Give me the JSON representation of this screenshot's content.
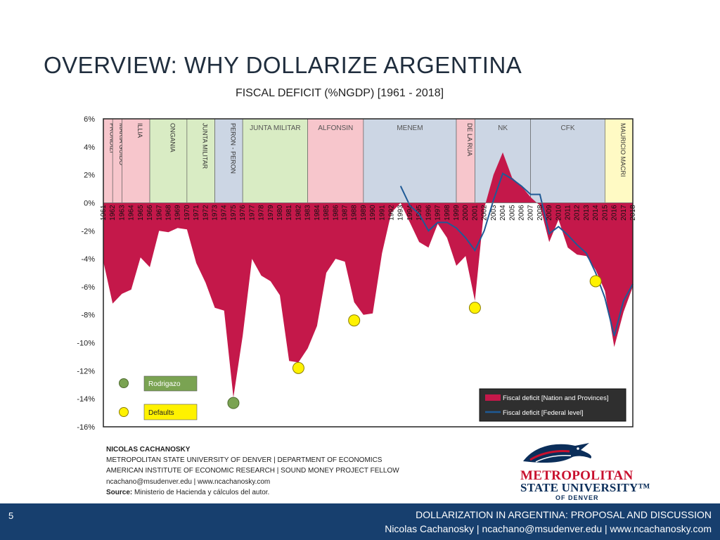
{
  "slide": {
    "title": "OVERVIEW: WHY DOLLARIZE ARGENTINA",
    "number": "5"
  },
  "footer": {
    "line1": "DOLLARIZATION IN ARGENTINA: PROPOSAL AND DISCUSSION",
    "line2": "Nicolas Cachanosky | ncachano@msudenver.edu | www.ncachanosky.com"
  },
  "author": {
    "name": "NICOLAS CACHANOSKY",
    "line1": "METROPOLITAN  STATE UNIVERSITY  OF DENVER  |  DEPARTMENT   OF ECONOMICS",
    "line2": "AMERICAN  INSTITUTE OF ECONOMIC RESEARCH  |  SOUND  MONEY PROJECT FELLOW",
    "contact": "ncachano@msudenver.edu | www.ncachanosky.com",
    "source_label": "Source:",
    "source_text": "Ministerio de Hacienda y cálculos del autor."
  },
  "logo": {
    "line1": "METROPOLITAN",
    "line2": "STATE UNIVERSITY™",
    "line3": "OF DENVER"
  },
  "chart_data": {
    "type": "area",
    "title": "FISCAL DEFICIT (%NGDP) [1961 - 2018]",
    "xlabel": "",
    "ylabel": "",
    "ylim": [
      -16,
      6
    ],
    "yticks": [
      6,
      4,
      2,
      0,
      -2,
      -4,
      -6,
      -8,
      -10,
      -12,
      -14,
      -16
    ],
    "ytick_labels": [
      "6%",
      "4%",
      "2%",
      "0%",
      "-2%",
      "-4%",
      "-6%",
      "-8%",
      "-10%",
      "-12%",
      "-14%",
      "-16%"
    ],
    "x": [
      1961,
      1962,
      1963,
      1964,
      1965,
      1966,
      1967,
      1968,
      1969,
      1970,
      1971,
      1972,
      1973,
      1974,
      1975,
      1976,
      1977,
      1978,
      1979,
      1980,
      1981,
      1982,
      1983,
      1984,
      1985,
      1986,
      1987,
      1988,
      1989,
      1990,
      1991,
      1992,
      1993,
      1994,
      1995,
      1996,
      1997,
      1998,
      1999,
      2000,
      2001,
      2002,
      2003,
      2004,
      2005,
      2006,
      2007,
      2008,
      2009,
      2010,
      2011,
      2012,
      2013,
      2014,
      2015,
      2016,
      2017,
      2018
    ],
    "series": [
      {
        "name": "Fiscal deficit [Nation and Provinces]",
        "kind": "area",
        "color": "#c4184a",
        "values": [
          -4.2,
          -7.2,
          -6.5,
          -6.2,
          -3.9,
          -4.6,
          -2.0,
          -2.1,
          -1.8,
          -1.9,
          -4.3,
          -5.7,
          -7.5,
          -7.7,
          -13.9,
          -9.5,
          -4.0,
          -5.2,
          -5.6,
          -6.6,
          -11.3,
          -11.4,
          -10.4,
          -8.8,
          -5.0,
          -4.0,
          -4.2,
          -7.1,
          -8.0,
          -7.9,
          -3.6,
          -0.7,
          0.0,
          -1.4,
          -2.8,
          -3.2,
          -1.5,
          -2.5,
          -4.5,
          -3.8,
          -7.0,
          -0.4,
          2.0,
          3.6,
          1.8,
          1.2,
          0.4,
          -0.2,
          -2.8,
          -1.2,
          -3.2,
          -3.7,
          -3.8,
          -4.8,
          -6.3,
          -10.3,
          -7.8,
          -6.0
        ]
      },
      {
        "name": "Fiscal deficit [Federal level]",
        "kind": "line",
        "color": "#1f5a96",
        "x": [
          1993,
          1994,
          1995,
          1996,
          1997,
          1998,
          1999,
          2000,
          2001,
          2002,
          2003,
          2004,
          2005,
          2006,
          2007,
          2008,
          2009,
          2010,
          2011,
          2012,
          2013,
          2014,
          2015,
          2016,
          2017,
          2018
        ],
        "values": [
          1.2,
          -0.2,
          -0.8,
          -2.0,
          -1.4,
          -1.4,
          -1.8,
          -2.5,
          -3.4,
          -2.0,
          0.2,
          2.1,
          1.7,
          1.2,
          0.6,
          0.6,
          -2.2,
          -1.7,
          -2.3,
          -3.0,
          -3.6,
          -5.0,
          -6.8,
          -9.5,
          -7.0,
          -5.8
        ]
      }
    ],
    "periods": [
      {
        "label": "FRONDIZI",
        "start": 1961,
        "end": 1962,
        "color": "#f7c6cc",
        "vertical": true
      },
      {
        "label": "MARIA GUIDO",
        "start": 1962,
        "end": 1963,
        "color": "#f7c6cc",
        "vertical": true
      },
      {
        "label": "ILLIA",
        "start": 1963,
        "end": 1966,
        "color": "#f7c6cc",
        "vertical": true
      },
      {
        "label": "ONGANIA",
        "start": 1966,
        "end": 1970,
        "color": "#d9ecc4",
        "vertical": true
      },
      {
        "label": "JUNTA MILITAR",
        "start": 1970,
        "end": 1973,
        "color": "#d9ecc4",
        "vertical": true
      },
      {
        "label": "PERON - PERON",
        "start": 1973,
        "end": 1976,
        "color": "#ccd6e4",
        "vertical": true
      },
      {
        "label": "JUNTA MILITAR",
        "start": 1976,
        "end": 1983,
        "color": "#d9ecc4",
        "vertical": false
      },
      {
        "label": "ALFONSIN",
        "start": 1983,
        "end": 1989,
        "color": "#f7c6cc",
        "vertical": false
      },
      {
        "label": "MENEM",
        "start": 1989,
        "end": 1999,
        "color": "#ccd6e4",
        "vertical": false
      },
      {
        "label": "DE LA RUA",
        "start": 1999,
        "end": 2001,
        "color": "#f7c6cc",
        "vertical": true
      },
      {
        "label": "NK",
        "start": 2001,
        "end": 2007,
        "color": "#ccd6e4",
        "vertical": false
      },
      {
        "label": "CFK",
        "start": 2007,
        "end": 2015,
        "color": "#ccd6e4",
        "vertical": false
      },
      {
        "label": "MAURICIO MACRI",
        "start": 2015,
        "end": 2018,
        "color": "#fffac4",
        "vertical": true
      }
    ],
    "markers": {
      "rodrigazo": [
        {
          "x": 1975,
          "y": -14.3
        }
      ],
      "defaults": [
        {
          "x": 1982,
          "y": -11.8
        },
        {
          "x": 1988,
          "y": -8.4
        },
        {
          "x": 2001,
          "y": -7.5
        },
        {
          "x": 2014,
          "y": -5.6
        }
      ]
    },
    "key": {
      "rodrigazo_label": "Rodrigazo",
      "defaults_label": "Defaults",
      "rodrigazo_color": "#7aa352",
      "defaults_color": "#fff200"
    },
    "legend_placement": "bottom-right",
    "grid": false
  }
}
